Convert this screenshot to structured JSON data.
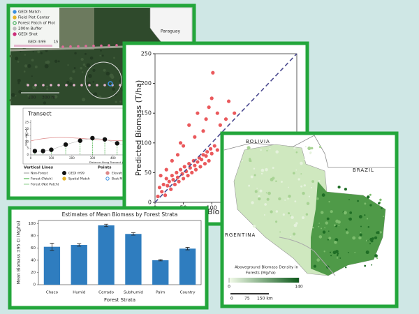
{
  "satellite": {
    "legend": [
      "GEDI Match",
      "Field Plot Center",
      "Forest Patch of Plot",
      "200m Buffer",
      "GEDI Shot"
    ],
    "colorbar_label": "GEDI rh99",
    "colorbar_max": "15",
    "inset_label": "Paraguay",
    "scale_labels": [
      "100",
      "300 m"
    ]
  },
  "map": {
    "labels": [
      "BOLIVIA",
      "BRAZIL",
      "RGENTINA"
    ],
    "colorbar_title": [
      "Aboveground Biomass Density in",
      "Forests (Mg/ha)"
    ],
    "colorbar_ticks": [
      0,
      140
    ],
    "scale_labels": [
      "0",
      "75",
      "150 km"
    ]
  },
  "chart_data": [
    {
      "type": "line",
      "title": "Transect",
      "y_label": "GEDI rh99 (m)",
      "x_label": "Distance Along Transect (m)",
      "x": [
        20,
        60,
        100,
        170,
        240,
        300,
        360,
        420,
        480,
        530,
        580,
        640
      ],
      "series": [
        {
          "name": "GEDI rh99",
          "color": "#111111",
          "values": [
            3,
            3,
            4,
            8,
            11,
            13,
            12,
            9,
            7,
            10,
            12,
            8
          ]
        }
      ],
      "xlim": [
        0,
        750
      ],
      "ylim": [
        0,
        27
      ],
      "xticks": [
        0,
        100,
        200,
        300,
        400,
        500,
        600,
        700
      ],
      "yticks": [
        0,
        5,
        10,
        15,
        20,
        25
      ],
      "legend_titles": [
        "Vertical Lines",
        "Points"
      ],
      "legend_labels": [
        "Non-Forest",
        "Forest (Patch)",
        "Forest (Not Patch)",
        "Spatial Match",
        "Elevation",
        "Best Match"
      ]
    },
    {
      "type": "scatter",
      "y_label": "Predicted Biomass (T/ha)",
      "x_label": "Bio",
      "color": "#e8474a",
      "x": [
        5,
        8,
        12,
        15,
        18,
        20,
        22,
        25,
        28,
        30,
        32,
        35,
        38,
        40,
        42,
        45,
        48,
        50,
        52,
        55,
        58,
        60,
        62,
        65,
        68,
        70,
        72,
        75,
        78,
        80,
        82,
        85,
        88,
        90,
        92,
        95,
        98,
        100,
        105,
        110,
        85,
        90,
        95,
        75,
        100,
        110,
        60,
        70,
        50,
        40,
        115,
        120,
        125,
        130,
        140,
        102,
        30,
        45,
        20,
        10
      ],
      "values": [
        10,
        25,
        18,
        30,
        12,
        40,
        28,
        35,
        22,
        45,
        38,
        30,
        50,
        42,
        35,
        55,
        48,
        40,
        60,
        52,
        45,
        65,
        58,
        50,
        70,
        62,
        55,
        68,
        75,
        60,
        72,
        80,
        65,
        78,
        85,
        70,
        90,
        82,
        95,
        88,
        120,
        140,
        160,
        150,
        175,
        150,
        130,
        110,
        95,
        80,
        130,
        110,
        140,
        170,
        150,
        218,
        70,
        100,
        55,
        45
      ],
      "xlim": [
        0,
        250
      ],
      "ylim": [
        0,
        250
      ],
      "xticks": [
        0,
        50,
        100
      ],
      "yticks": [
        0,
        50,
        100,
        150,
        200,
        250
      ]
    },
    {
      "type": "bar",
      "title": "Estimates of Mean Biomass by Forest Strata",
      "y_label": "Mean Biomass ±95 CI (Mg/ha)",
      "x_label": "Forest Strata",
      "color": "#2f7dbf",
      "categories": [
        "Chaco",
        "Humid",
        "Cerrado",
        "Subhumid",
        "Palm",
        "Country"
      ],
      "values": [
        62,
        65,
        97,
        83,
        40,
        59
      ],
      "errors": [
        6,
        2,
        2,
        2,
        1,
        2
      ],
      "ylim": [
        0,
        105
      ],
      "yticks": [
        0,
        20,
        40,
        60,
        80,
        100
      ]
    }
  ]
}
